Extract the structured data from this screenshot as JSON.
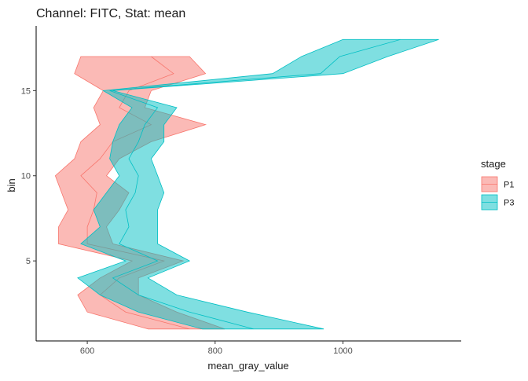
{
  "chart_data": {
    "type": "area",
    "orientation": "horizontal-ribbon",
    "title": "Channel: FITC, Stat: mean",
    "xlabel": "mean_gray_value",
    "ylabel": "bin",
    "xlim": [
      520,
      1185
    ],
    "ylim": [
      0.3,
      18.8
    ],
    "x_ticks": [
      600,
      800,
      1000
    ],
    "y_ticks": [
      5,
      10,
      15
    ],
    "grid": false,
    "legend": {
      "title": "stage",
      "position": "right"
    },
    "series": [
      {
        "name": "P1",
        "color": "#F8766D",
        "bins": [
          1,
          2,
          3,
          4,
          5,
          6,
          7,
          8,
          9,
          10,
          11,
          12,
          13,
          14,
          15,
          16,
          17
        ],
        "lower": [
          695,
          600,
          585,
          620,
          670,
          555,
          555,
          570,
          560,
          550,
          580,
          590,
          620,
          610,
          625,
          580,
          590
        ],
        "upper": [
          815,
          740,
          680,
          680,
          750,
          640,
          630,
          650,
          665,
          630,
          650,
          700,
          785,
          690,
          700,
          785,
          760
        ],
        "mid": [
          760,
          660,
          620,
          650,
          720,
          600,
          600,
          610,
          615,
          590,
          620,
          640,
          700,
          650,
          665,
          735,
          700
        ]
      },
      {
        "name": "P3",
        "color": "#00BFC4",
        "bins": [
          1,
          2,
          3,
          4,
          5,
          6,
          7,
          8,
          9,
          10,
          11,
          12,
          13,
          14,
          15,
          16,
          17,
          18
        ],
        "lower": [
          780,
          680,
          620,
          585,
          660,
          590,
          620,
          610,
          630,
          650,
          635,
          640,
          650,
          670,
          625,
          890,
          935,
          1000
        ],
        "upper": [
          970,
          850,
          740,
          695,
          760,
          710,
          710,
          710,
          720,
          710,
          700,
          720,
          720,
          740,
          640,
          1000,
          1070,
          1150
        ],
        "mid": [
          860,
          760,
          680,
          640,
          710,
          650,
          665,
          660,
          675,
          680,
          665,
          680,
          690,
          710,
          635,
          965,
          995,
          1090
        ]
      }
    ]
  }
}
